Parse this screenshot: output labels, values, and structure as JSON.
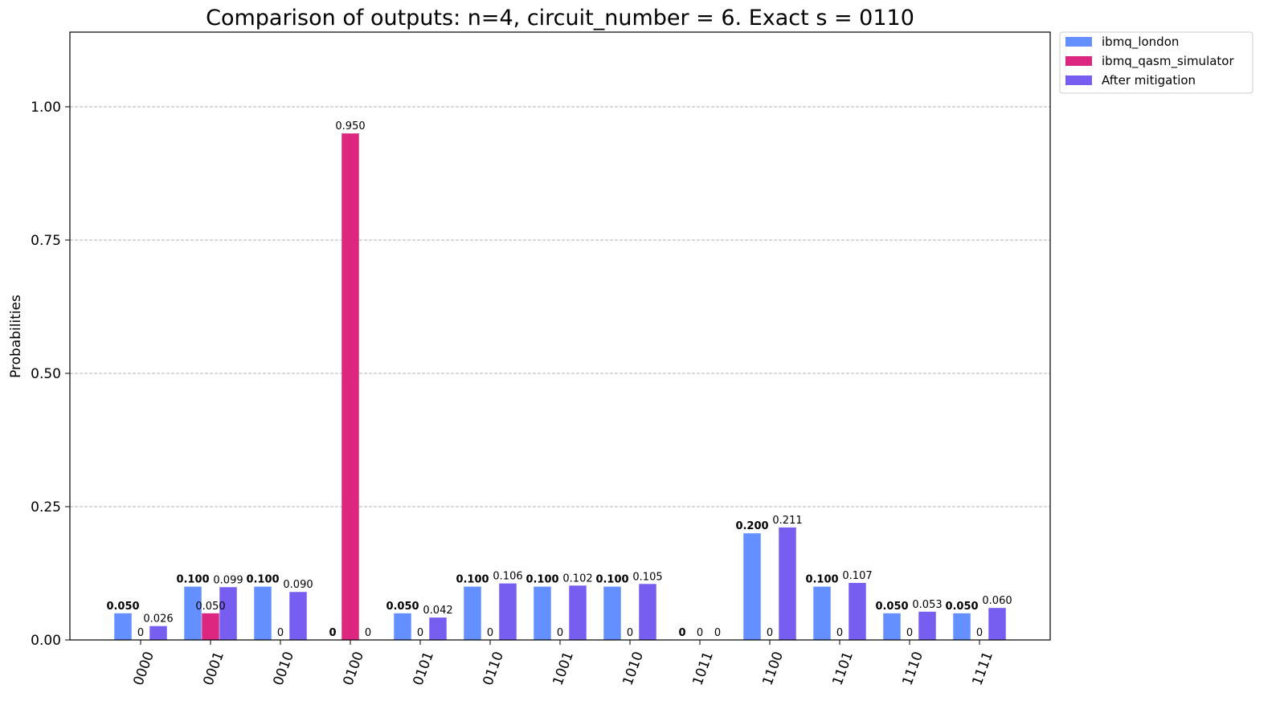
{
  "chart_data": {
    "type": "bar",
    "title": "Comparison of outputs: n=4, circuit_number = 6. Exact s = 0110",
    "xlabel": "",
    "ylabel": "Probabilities",
    "ylim": [
      0,
      1.14
    ],
    "yticks": [
      "0.00",
      "0.25",
      "0.50",
      "0.75",
      "1.00"
    ],
    "ytick_values": [
      0,
      0.25,
      0.5,
      0.75,
      1.0
    ],
    "grid": "y-dashed",
    "legend_position": "outside-top-right",
    "categories": [
      "0000",
      "0001",
      "0010",
      "0100",
      "0101",
      "0110",
      "1001",
      "1010",
      "1011",
      "1100",
      "1101",
      "1110",
      "1111"
    ],
    "series": [
      {
        "name": "ibmq_london",
        "color": "#648fff",
        "values": [
          0.05,
          0.1,
          0.1,
          0,
          0.05,
          0.1,
          0.1,
          0.1,
          0,
          0.2,
          0.1,
          0.05,
          0.05
        ],
        "labels": [
          "0.050",
          "0.100",
          "0.100",
          "0",
          "0.050",
          "0.100",
          "0.100",
          "0.100",
          "0",
          "0.200",
          "0.100",
          "0.050",
          "0.050"
        ]
      },
      {
        "name": "ibmq_qasm_simulator",
        "color": "#dc267f",
        "values": [
          0,
          0.05,
          0,
          0.95,
          0,
          0,
          0,
          0,
          0,
          0,
          0,
          0,
          0
        ],
        "labels": [
          "0",
          "0.050",
          "0",
          "0.950",
          "0",
          "0",
          "0",
          "0",
          "0",
          "0",
          "0",
          "0",
          "0"
        ]
      },
      {
        "name": "After mitigation",
        "color": "#785ef0",
        "values": [
          0.026,
          0.099,
          0.09,
          0,
          0.042,
          0.106,
          0.102,
          0.105,
          0,
          0.211,
          0.107,
          0.053,
          0.06
        ],
        "labels": [
          "0.026",
          "0.099",
          "0.090",
          "0",
          "0.042",
          "0.106",
          "0.102",
          "0.105",
          "0",
          "0.211",
          "0.107",
          "0.053",
          "0.060"
        ]
      }
    ]
  }
}
